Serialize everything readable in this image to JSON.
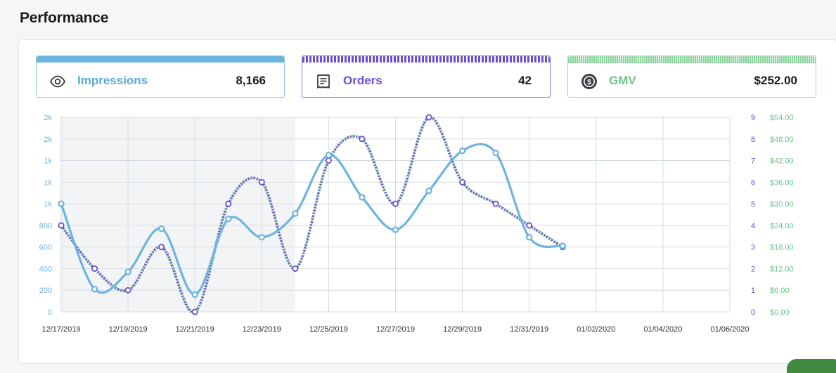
{
  "page": {
    "title": "Performance"
  },
  "cards": {
    "impressions": {
      "label": "Impressions",
      "value": "8,166",
      "icon": "eye-icon",
      "color": "#6cb4e0"
    },
    "orders": {
      "label": "Orders",
      "value": "42",
      "icon": "receipt-icon",
      "color": "#6a4fd4"
    },
    "gmv": {
      "label": "GMV",
      "value": "$252.00",
      "icon": "dollar-coin-icon",
      "color": "#8fd3a0"
    }
  },
  "chart_data": {
    "type": "line",
    "x": [
      "12/17/2019",
      "12/18/2019",
      "12/19/2019",
      "12/20/2019",
      "12/21/2019",
      "12/22/2019",
      "12/23/2019",
      "12/24/2019",
      "12/25/2019",
      "12/26/2019",
      "12/27/2019",
      "12/28/2019",
      "12/29/2019",
      "12/30/2019",
      "12/31/2019",
      "01/01/2020"
    ],
    "x_tick_labels": [
      "12/17/2019",
      "12/19/2019",
      "12/21/2019",
      "12/23/2019",
      "12/25/2019",
      "12/27/2019",
      "12/29/2019",
      "12/31/2019",
      "01/02/2020",
      "01/04/2020",
      "01/06/2020"
    ],
    "x_range": [
      "12/17/2019",
      "01/06/2020"
    ],
    "left_axis": {
      "ticks": [
        0,
        200,
        400,
        600,
        800,
        1000,
        1200,
        1400,
        1600,
        1800
      ],
      "tick_labels": [
        "0",
        "200",
        "400",
        "600",
        "800",
        "1k",
        "1k",
        "1k",
        "2k",
        "2k"
      ],
      "color": "#6cb4e0",
      "ylim": [
        0,
        1800
      ]
    },
    "right_axis_orders": {
      "ticks": [
        0,
        1,
        2,
        3,
        4,
        5,
        6,
        7,
        8,
        9
      ],
      "tick_labels": [
        "0",
        "1",
        "2",
        "3",
        "4",
        "5",
        "6",
        "7",
        "8",
        "9"
      ],
      "color": "#6a4fd4",
      "ylim": [
        0,
        9
      ]
    },
    "right_axis_gmv": {
      "ticks": [
        0,
        6,
        12,
        18,
        24,
        30,
        36,
        42,
        48,
        54
      ],
      "tick_labels": [
        "$0.00",
        "$6.00",
        "$12.00",
        "$18.00",
        "$24.00",
        "$30.00",
        "$36.00",
        "$42.00",
        "$48.00",
        "$54.00"
      ],
      "color": "#6cc48a",
      "ylim": [
        0,
        54
      ]
    },
    "series": [
      {
        "name": "Impressions",
        "axis": "left",
        "style": "solid",
        "color": "#6cb4e0",
        "values": [
          1000,
          210,
          370,
          770,
          160,
          860,
          690,
          910,
          1450,
          1060,
          760,
          1120,
          1490,
          1470,
          690,
          610
        ]
      },
      {
        "name": "Orders",
        "axis": "right_orders",
        "style": "dotted",
        "color": "#6a4fd4",
        "values": [
          4,
          2,
          1,
          3,
          0,
          5,
          6,
          2,
          7,
          8,
          5,
          9,
          6,
          5,
          4,
          3
        ]
      },
      {
        "name": "GMV",
        "axis": "right_gmv",
        "style": "dotted",
        "color": "#8fd3a0",
        "values": [
          24,
          12,
          6,
          18,
          0,
          30,
          36,
          12,
          42,
          48,
          30,
          54,
          36,
          30,
          24,
          18
        ]
      }
    ],
    "grid": true
  }
}
